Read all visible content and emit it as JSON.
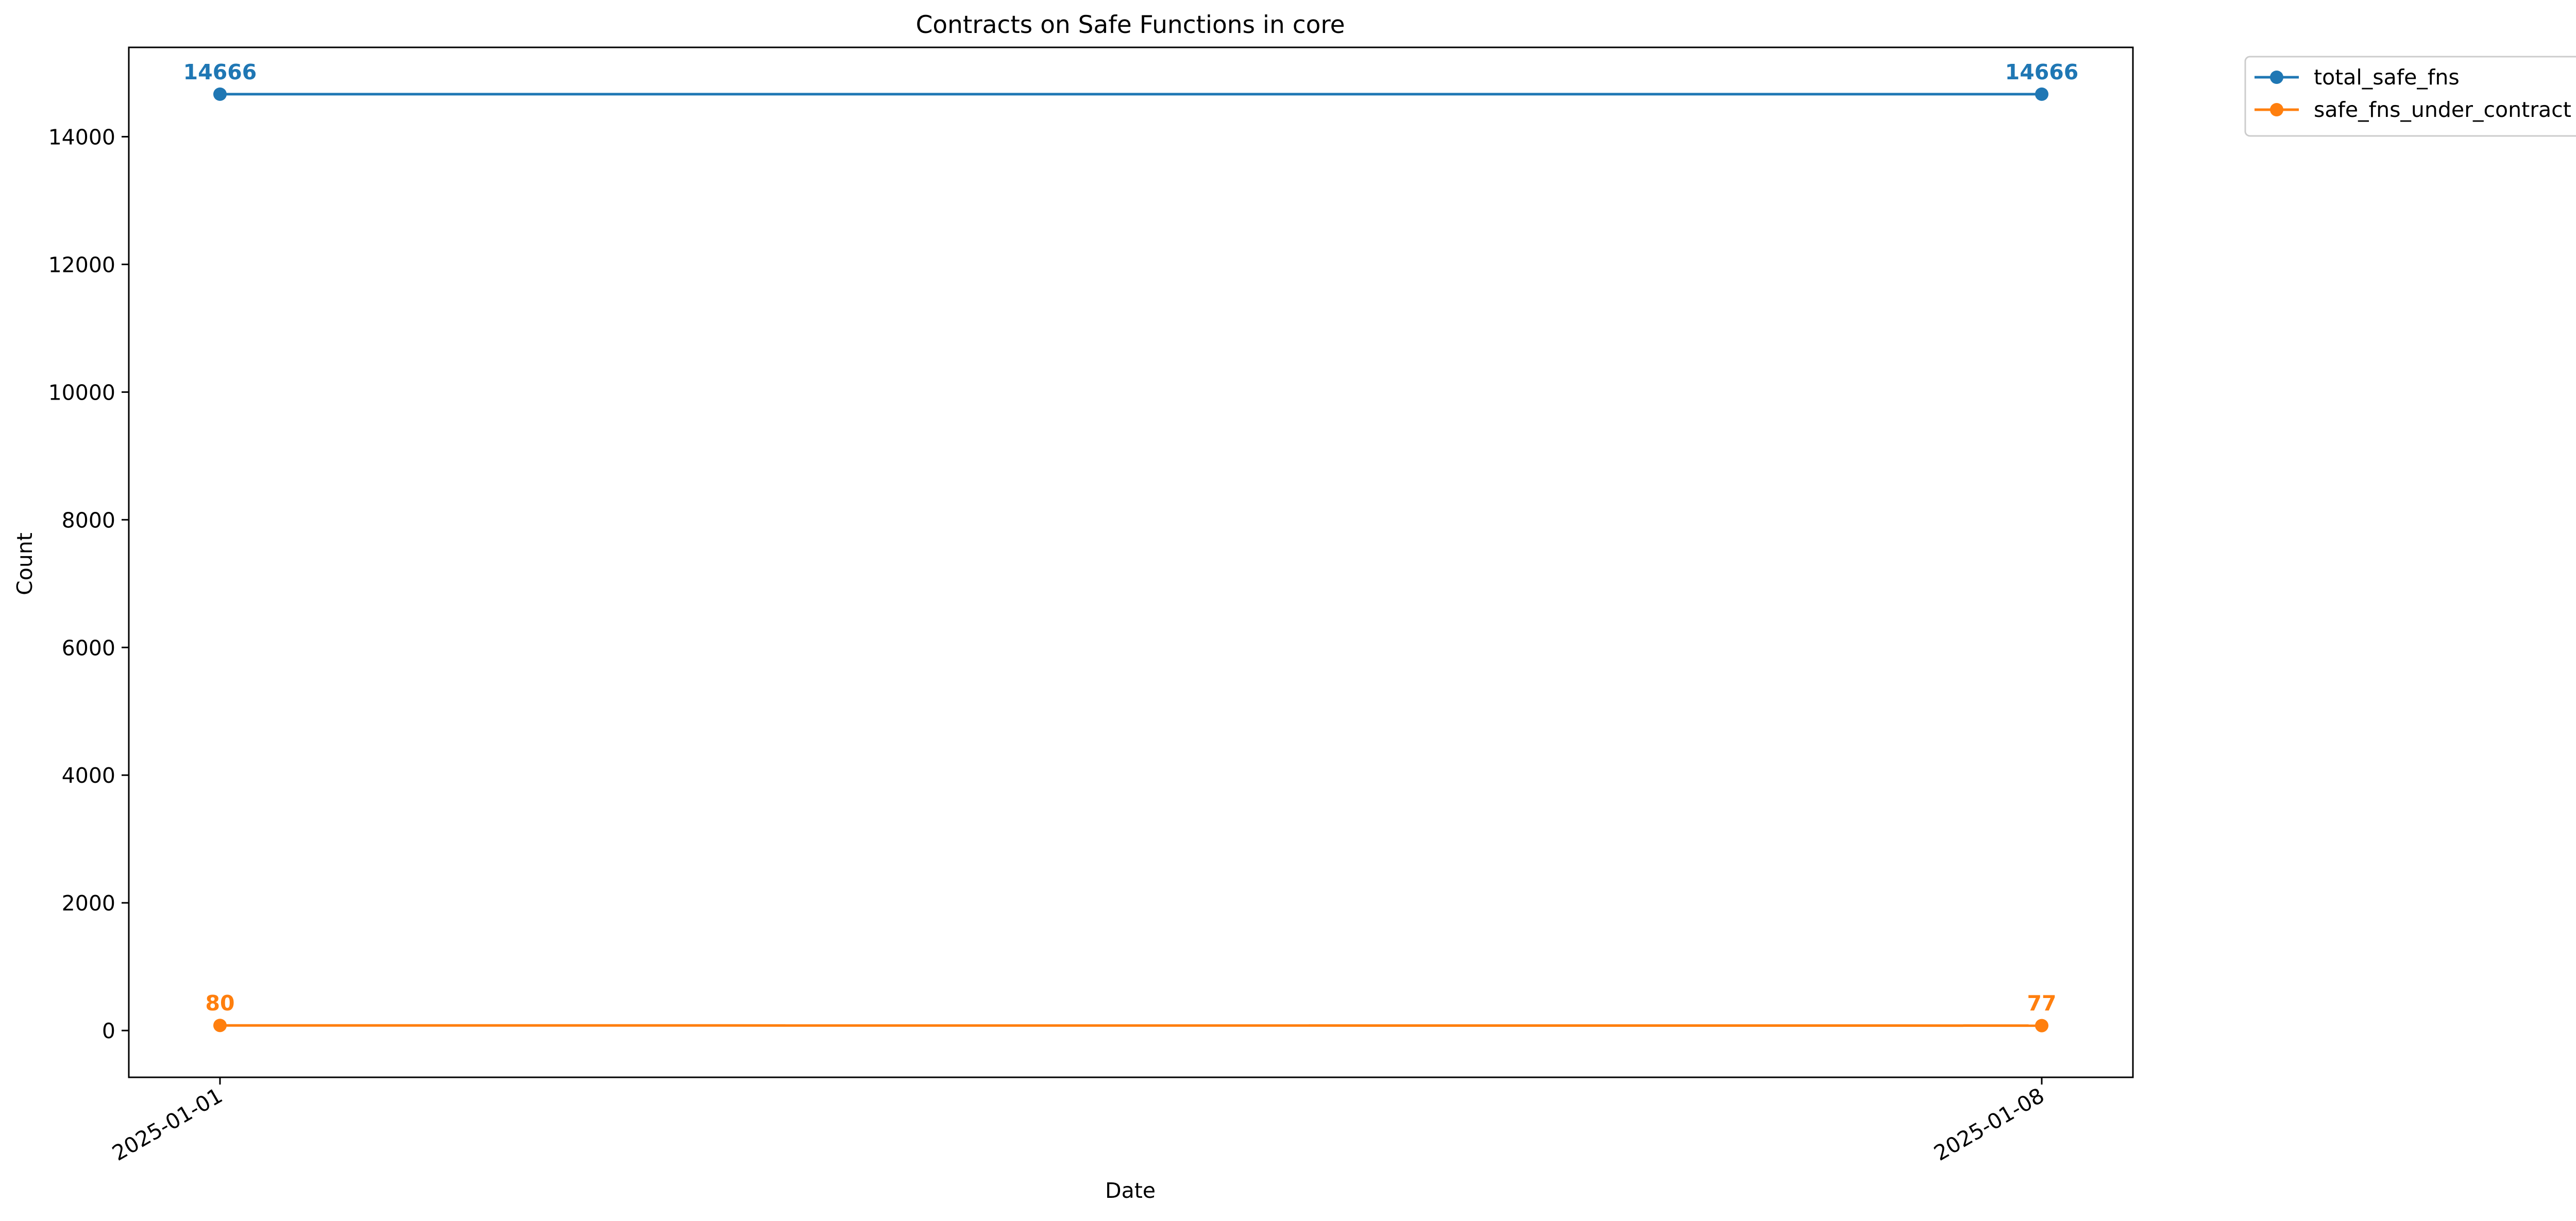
{
  "chart_data": {
    "type": "line",
    "title": "Contracts on Safe Functions in core",
    "xlabel": "Date",
    "ylabel": "Count",
    "x": [
      "2025-01-01",
      "2025-01-08"
    ],
    "xticks": [
      "2025-01-01",
      "2025-01-08"
    ],
    "ylim": [
      -733,
      15399
    ],
    "yticks": [
      0,
      2000,
      4000,
      6000,
      8000,
      10000,
      12000,
      14000
    ],
    "grid": false,
    "legend_placement": "outside top-right",
    "series": [
      {
        "name": "total_safe_fns",
        "values": [
          14666,
          14666
        ],
        "color": "#1f77b4",
        "marker": "circle"
      },
      {
        "name": "safe_fns_under_contract",
        "values": [
          80,
          77
        ],
        "color": "#ff7f0e",
        "marker": "circle"
      }
    ],
    "data_labels": true
  }
}
